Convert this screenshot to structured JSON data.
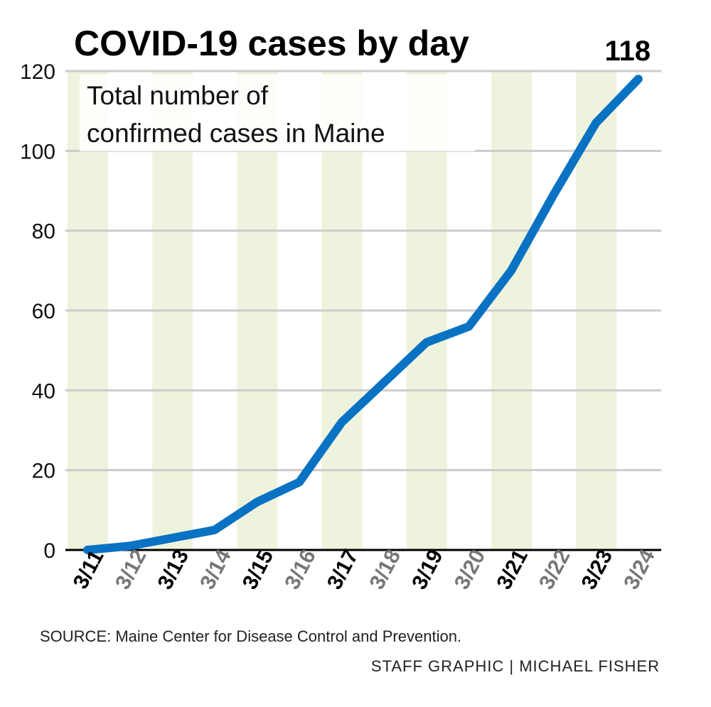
{
  "chart_data": {
    "type": "line",
    "title": "COVID-19 cases by day",
    "subtitle_lines": [
      "Total number of",
      "confirmed cases in Maine"
    ],
    "callout": "118",
    "categories": [
      "3/11",
      "3/12",
      "3/13",
      "3/14",
      "3/15",
      "3/16",
      "3/17",
      "3/18",
      "3/19",
      "3/20",
      "3/21",
      "3/22",
      "3/23",
      "3/24"
    ],
    "values": [
      0,
      1,
      3,
      5,
      12,
      17,
      32,
      42,
      52,
      56,
      70,
      89,
      107,
      118
    ],
    "ylim": [
      0,
      120
    ],
    "yticks": [
      "0",
      "20",
      "40",
      "60",
      "80",
      "100",
      "120"
    ],
    "xlabel": "",
    "ylabel": "",
    "grid": true,
    "colors": {
      "line": "#0a72c2",
      "band": "#eef3dd",
      "grid": "#cccccc",
      "axis": "#000000",
      "tick_dark": "#000000",
      "tick_light": "#777777"
    }
  },
  "source": "SOURCE: Maine Center for Disease Control and Prevention.",
  "credit": "STAFF GRAPHIC | MICHAEL FISHER"
}
